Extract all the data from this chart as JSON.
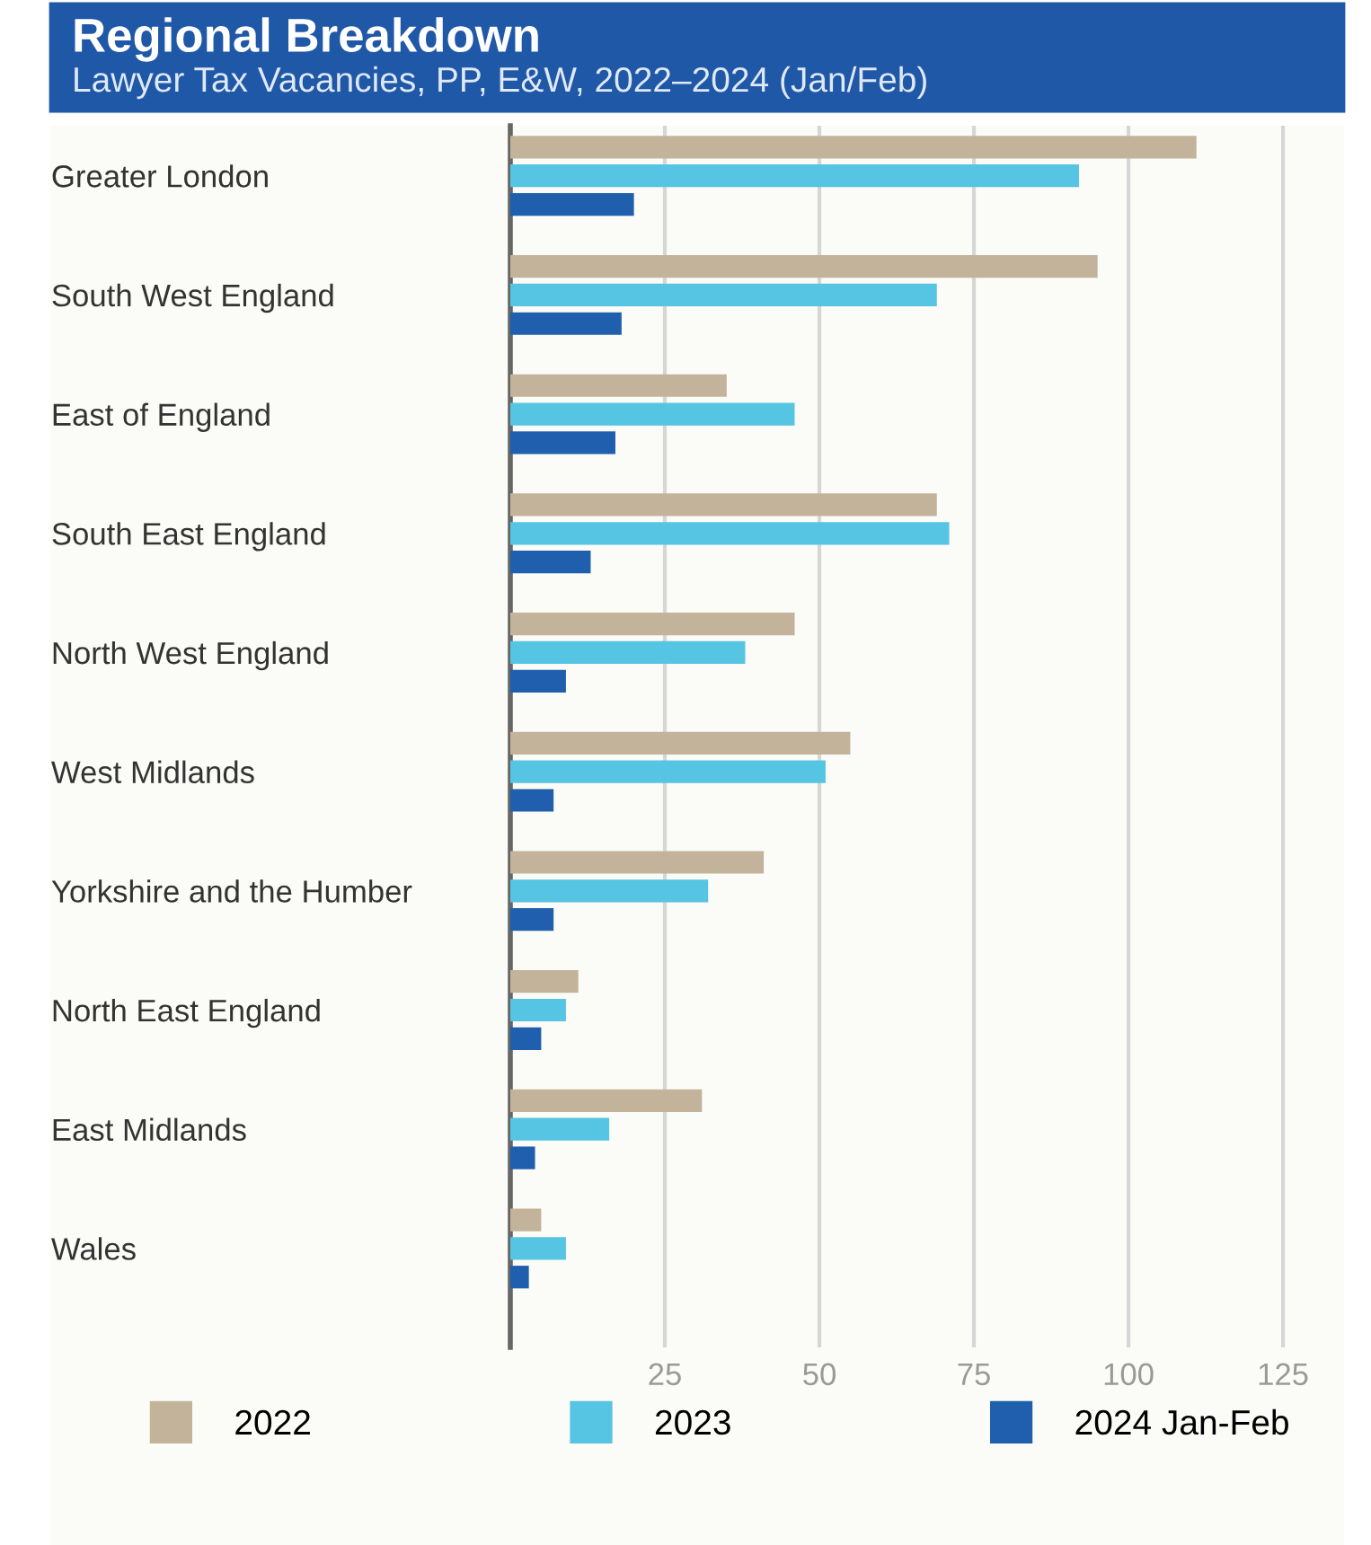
{
  "chart_data": {
    "type": "bar",
    "orientation": "horizontal",
    "title": "Regional Breakdown",
    "subtitle": "Lawyer Tax Vacancies, PP, E&W, 2022–2024 (Jan/Feb)",
    "categories": [
      "Greater London",
      "South West England",
      "East of England",
      "South East England",
      "North West England",
      "West Midlands",
      "Yorkshire and the Humber",
      "North East England",
      "East Midlands",
      "Wales"
    ],
    "series": [
      {
        "name": "2022",
        "color": "#c4b39b",
        "values": [
          111,
          95,
          35,
          69,
          46,
          55,
          41,
          11,
          31,
          5
        ]
      },
      {
        "name": "2023",
        "color": "#56c4e3",
        "values": [
          92,
          69,
          46,
          71,
          38,
          51,
          32,
          9,
          16,
          9
        ]
      },
      {
        "name": "2024 Jan-Feb",
        "color": "#1f5fad",
        "values": [
          20,
          18,
          17,
          13,
          9,
          7,
          7,
          5,
          4,
          3
        ]
      }
    ],
    "xlim": [
      0,
      134
    ],
    "xticks": [
      25,
      50,
      75,
      100,
      125
    ],
    "grid": "x",
    "legend": "bottom"
  }
}
